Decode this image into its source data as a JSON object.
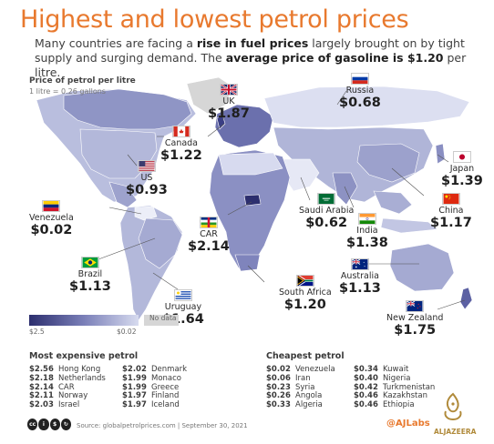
{
  "header": {
    "title": "Highest and lowest petrol prices",
    "subtitle_part1": "Many countries are facing a ",
    "subtitle_bold1": "rise in fuel prices",
    "subtitle_part2": " largely brought on by tight supply and surging demand. The ",
    "subtitle_bold2": "average price of gasoline is $1.20",
    "subtitle_part3": " per litre."
  },
  "map": {
    "title": "Price of petrol per litre",
    "note": "1 litre = 0.26 gallons"
  },
  "callouts": [
    {
      "country": "UK",
      "price": "$1.87",
      "flag": "uk-flag"
    },
    {
      "country": "Russia",
      "price": "$0.68",
      "flag": "russia-flag"
    },
    {
      "country": "Canada",
      "price": "$1.22",
      "flag": "canada-flag"
    },
    {
      "country": "US",
      "price": "$0.93",
      "flag": "us-flag"
    },
    {
      "country": "Japan",
      "price": "$1.39",
      "flag": "japan-flag"
    },
    {
      "country": "Venezuela",
      "price": "$0.02",
      "flag": "venezuela-flag"
    },
    {
      "country": "Saudi Arabia",
      "price": "$0.62",
      "flag": "saudi-flag"
    },
    {
      "country": "China",
      "price": "$1.17",
      "flag": "china-flag"
    },
    {
      "country": "India",
      "price": "$1.38",
      "flag": "india-flag"
    },
    {
      "country": "CAR",
      "price": "$2.14",
      "flag": "car-flag"
    },
    {
      "country": "Brazil",
      "price": "$1.13",
      "flag": "brazil-flag"
    },
    {
      "country": "Australia",
      "price": "$1.13",
      "flag": "australia-flag"
    },
    {
      "country": "South Africa",
      "price": "$1.20",
      "flag": "southafrica-flag"
    },
    {
      "country": "Uruguay",
      "price": "$1.64",
      "flag": "uruguay-flag"
    },
    {
      "country": "New Zealand",
      "price": "$1.75",
      "flag": "newzealand-flag"
    }
  ],
  "legend": {
    "high": "$2.5",
    "low": "$0.02",
    "nodata": "No data",
    "colors": {
      "high": "#2c2e6e",
      "mid": "#7a7fb8",
      "low": "#d7dbef",
      "nodata": "#d6d6d6"
    }
  },
  "most_expensive": {
    "heading": "Most expensive petrol",
    "col1": [
      {
        "value": "$2.56",
        "country": "Hong Kong"
      },
      {
        "value": "$2.18",
        "country": "Netherlands"
      },
      {
        "value": "$2.14",
        "country": "CAR"
      },
      {
        "value": "$2.11",
        "country": "Norway"
      },
      {
        "value": "$2.03",
        "country": "Israel"
      }
    ],
    "col2": [
      {
        "value": "$2.02",
        "country": "Denmark"
      },
      {
        "value": "$1.99",
        "country": "Monaco"
      },
      {
        "value": "$1.99",
        "country": "Greece"
      },
      {
        "value": "$1.97",
        "country": "Finland"
      },
      {
        "value": "$1.97",
        "country": "Iceland"
      }
    ]
  },
  "cheapest": {
    "heading": "Cheapest petrol",
    "col1": [
      {
        "value": "$0.02",
        "country": "Venezuela"
      },
      {
        "value": "$0.06",
        "country": "Iran"
      },
      {
        "value": "$0.23",
        "country": "Syria"
      },
      {
        "value": "$0.26",
        "country": "Angola"
      },
      {
        "value": "$0.33",
        "country": "Algeria"
      }
    ],
    "col2": [
      {
        "value": "$0.34",
        "country": "Kuwait"
      },
      {
        "value": "$0.40",
        "country": "Nigeria"
      },
      {
        "value": "$0.42",
        "country": "Turkmenistan"
      },
      {
        "value": "$0.46",
        "country": "Kazakhstan"
      },
      {
        "value": "$0.46",
        "country": "Ethiopia"
      }
    ]
  },
  "footer": {
    "source": "Source: globalpetrolprices.com | September 30, 2021",
    "handle": "@AJLabs",
    "brand": "ALJAZEERA",
    "cc_icons": [
      "cc",
      "by",
      "nc",
      "sa"
    ]
  }
}
